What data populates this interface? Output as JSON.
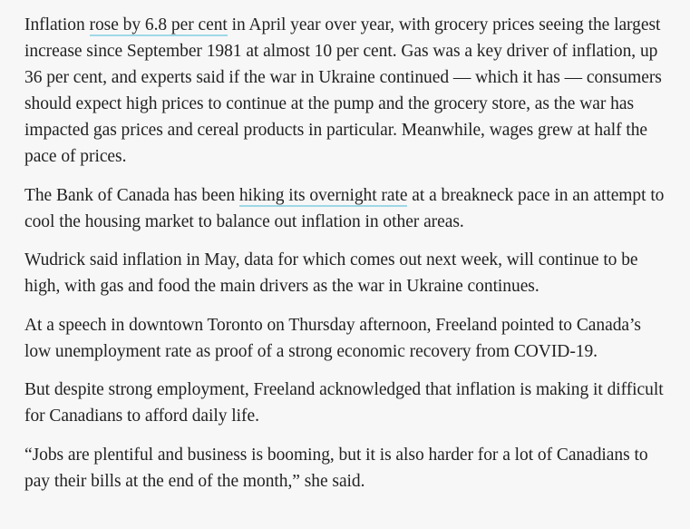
{
  "article": {
    "paragraphs": [
      {
        "segments": [
          {
            "type": "text",
            "text": "Inflation "
          },
          {
            "type": "link",
            "text": "rose by 6.8 per cent"
          },
          {
            "type": "text",
            "text": " in April year over year, with grocery prices seeing the largest increase since September 1981 at almost 10 per cent. Gas was a key driver of inflation, up 36 per cent, and experts said if the war in Ukraine continued — which it has — consumers should expect high prices to continue at the pump and the grocery store, as the war has impacted gas prices and cereal products in particular. Meanwhile, wages grew at half the pace of prices."
          }
        ]
      },
      {
        "segments": [
          {
            "type": "text",
            "text": "The Bank of Canada has been "
          },
          {
            "type": "link",
            "text": "hiking its overnight rate"
          },
          {
            "type": "text",
            "text": " at a breakneck pace in an attempt to cool the housing market to balance out inflation in other areas."
          }
        ]
      },
      {
        "segments": [
          {
            "type": "text",
            "text": "Wudrick said inflation in May, data for which comes out next week, will continue to be high, with gas and food the main drivers as the war in Ukraine continues."
          }
        ]
      },
      {
        "segments": [
          {
            "type": "text",
            "text": "At a speech in downtown Toronto on Thursday afternoon, Freeland pointed to Canada’s low unemployment rate as proof of a strong economic recovery from COVID-19."
          }
        ]
      },
      {
        "segments": [
          {
            "type": "text",
            "text": "But despite strong employment, Freeland acknowledged that inflation is making it difficult for Canadians to afford daily life."
          }
        ]
      },
      {
        "segments": [
          {
            "type": "text",
            "text": "“Jobs are plentiful and business is booming, but it is also harder for a lot of Canadians to pay their bills at the end of the month,” she said."
          }
        ]
      }
    ]
  },
  "colors": {
    "background": "#f7f7f7",
    "text": "#222222",
    "link_underline": "#9fd8e6"
  }
}
